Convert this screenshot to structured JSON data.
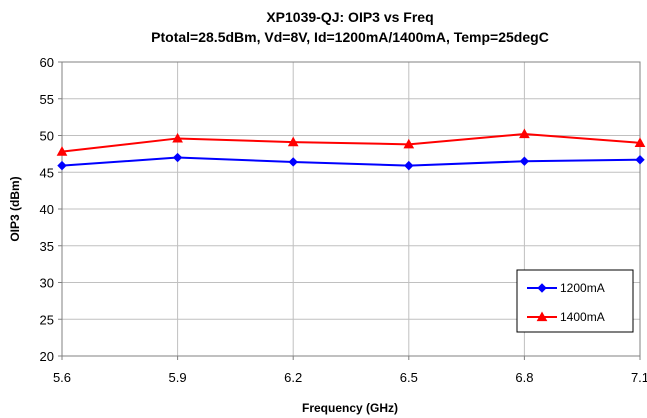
{
  "chart_data": {
    "type": "line",
    "title": "XP1039-QJ: OIP3 vs Freq",
    "subtitle": "Ptotal=28.5dBm, Vd=8V, Id=1200mA/1400mA, Temp=25degC",
    "xlabel": "Frequency (GHz)",
    "ylabel": "OIP3 (dBm)",
    "x": [
      5.6,
      5.9,
      6.2,
      6.5,
      6.8,
      7.1
    ],
    "x_tick_labels": [
      "5.6",
      "5.9",
      "6.2",
      "6.5",
      "6.8",
      "7.1"
    ],
    "xlim": [
      5.6,
      7.1
    ],
    "ylim": [
      20,
      60
    ],
    "y_ticks": [
      20,
      25,
      30,
      35,
      40,
      45,
      50,
      55,
      60
    ],
    "grid": true,
    "legend_position": "bottom-right",
    "series": [
      {
        "name": "1200mA",
        "color": "#0000ff",
        "marker": "diamond",
        "values": [
          45.9,
          47.0,
          46.4,
          45.9,
          46.5,
          46.7
        ]
      },
      {
        "name": "1400mA",
        "color": "#ff0000",
        "marker": "triangle",
        "values": [
          47.8,
          49.6,
          49.1,
          48.8,
          50.2,
          49.0
        ]
      }
    ]
  }
}
